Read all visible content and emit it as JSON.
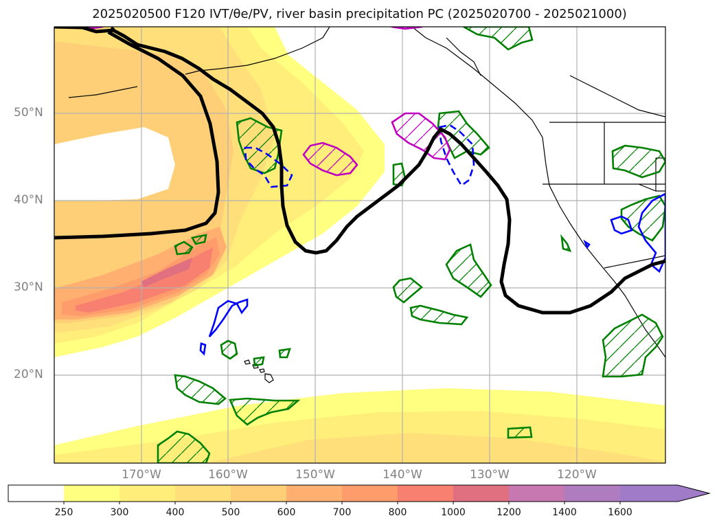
{
  "title": "2025020500 F120 IVT/θe/PV, river basin precipitation PC (2025020700 - 2025021000)",
  "map": {
    "lat_labels": [
      "50°N",
      "40°N",
      "30°N",
      "20°N"
    ],
    "lon_labels": [
      "170°W",
      "160°W",
      "150°W",
      "140°W",
      "130°W",
      "120°W"
    ]
  },
  "colorbar": {
    "labels": [
      "250",
      "300",
      "400",
      "500",
      "600",
      "700",
      "800",
      "1000",
      "1200",
      "1400",
      "1600"
    ],
    "colors": [
      "#ffffff",
      "#ffff80",
      "#ffef7a",
      "#ffdf7a",
      "#ffcf78",
      "#ffb070",
      "#ff9c6c",
      "#f88070",
      "#e07080",
      "#c878b0",
      "#b07cc0",
      "#a07cc8"
    ]
  },
  "colors": {
    "contour_line": "#000000",
    "positive_pc": "#008000",
    "negative_pc": "#0000ff",
    "pv_contour": "#c000c0",
    "grid": "#b0b0b0"
  }
}
